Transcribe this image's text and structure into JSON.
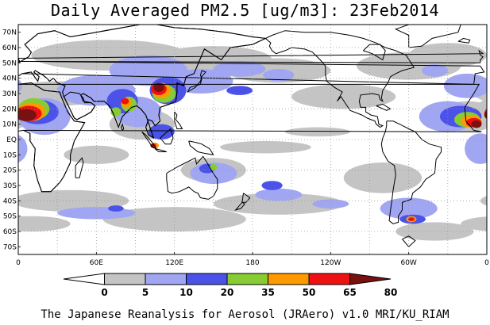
{
  "title": "Daily Averaged PM2.5 [ug/m3]: 23Feb2014",
  "footer": "The Japanese Reanalysis for Aerosol (JRAero) v1.0 MRI/KU_RIAM",
  "map": {
    "lat_labels": [
      "70N",
      "60N",
      "50N",
      "40N",
      "30N",
      "20N",
      "10N",
      "EQ",
      "10S",
      "20S",
      "30S",
      "40S",
      "50S",
      "60S",
      "70S"
    ],
    "lon_labels": [
      "0",
      "60E",
      "120E",
      "180",
      "120W",
      "60W",
      "0"
    ],
    "colors": {
      "ocean": "#ffffff",
      "coast": "#000000",
      "grid": "#9a9a9a"
    }
  },
  "colorbar": {
    "labels": [
      "0",
      "5",
      "10",
      "20",
      "35",
      "50",
      "65",
      "80"
    ],
    "colors": [
      "#ffffff",
      "#c4c4c4",
      "#a0a6f2",
      "#4a52e8",
      "#88cc33",
      "#ff9900",
      "#ee1111",
      "#7a1111"
    ]
  }
}
